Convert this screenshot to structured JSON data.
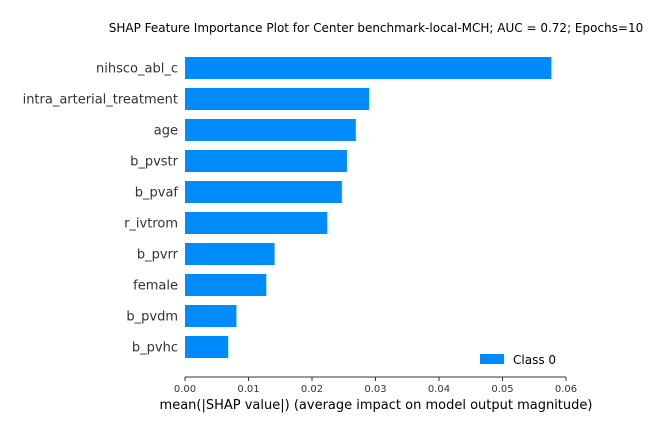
{
  "chart_data": {
    "type": "bar",
    "orientation": "horizontal",
    "title": "SHAP Feature Importance Plot for Center benchmark-local-MCH; AUC = 0.72; Epochs=10",
    "xlabel": "mean(|SHAP value|) (average impact on model output magnitude)",
    "ylabel": "",
    "xlim": [
      0,
      0.06
    ],
    "xticks": [
      "0.00",
      "0.01",
      "0.02",
      "0.03",
      "0.04",
      "0.05",
      "0.06"
    ],
    "categories": [
      "nihsco_abl_c",
      "intra_arterial_treatment",
      "age",
      "b_pvstr",
      "b_pvaf",
      "r_ivtrom",
      "b_pvrr",
      "female",
      "b_pvdm",
      "b_pvhc"
    ],
    "series": [
      {
        "name": "Class 0",
        "color": "#008bfb",
        "values": [
          0.0577,
          0.029,
          0.0269,
          0.0255,
          0.0247,
          0.0224,
          0.0141,
          0.0128,
          0.0081,
          0.0068
        ]
      }
    ],
    "grid": false,
    "legend": "lower-right"
  }
}
